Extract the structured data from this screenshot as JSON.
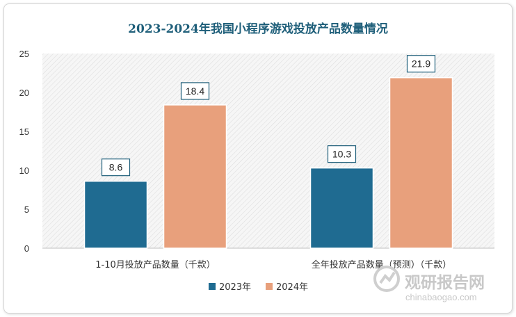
{
  "chart_data": {
    "type": "bar",
    "title": "2023-2024年我国小程序游戏投放产品数量情况",
    "categories": [
      "1-10月投放产品数量（千款）",
      "全年投放产品数量（预测）（千款）"
    ],
    "series": [
      {
        "name": "2023年",
        "values": [
          8.6,
          10.3
        ],
        "color": "#1f6b91"
      },
      {
        "name": "2024年",
        "values": [
          18.4,
          21.9
        ],
        "color": "#e8a07c"
      }
    ],
    "yticks": [
      0,
      5,
      10,
      15,
      20,
      25
    ],
    "ylim": [
      0,
      25
    ],
    "grid": false,
    "legend": "bottom-center"
  },
  "watermark": {
    "name": "观研报告网",
    "url": "chinabaogao.com",
    "icon": "chinabaogao-logo-icon"
  }
}
